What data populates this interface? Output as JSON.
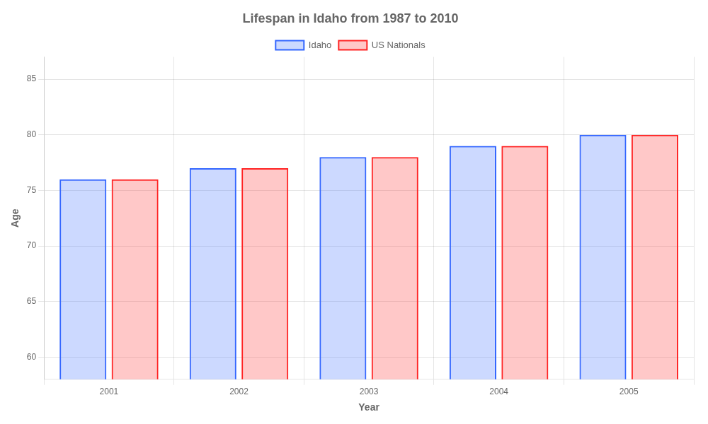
{
  "chart_data": {
    "type": "bar",
    "title": "Lifespan in Idaho from 1987 to 2010",
    "xlabel": "Year",
    "ylabel": "Age",
    "categories": [
      "2001",
      "2002",
      "2003",
      "2004",
      "2005"
    ],
    "series": [
      {
        "name": "Idaho",
        "color": "#3366ff",
        "values": [
          76,
          77,
          78,
          79,
          80
        ]
      },
      {
        "name": "US Nationals",
        "color": "#ff2222",
        "values": [
          76,
          77,
          78,
          79,
          80
        ]
      }
    ],
    "ylim": [
      58,
      87
    ],
    "yticks": [
      60,
      65,
      70,
      75,
      80,
      85
    ],
    "grid": true,
    "legend": "top"
  }
}
